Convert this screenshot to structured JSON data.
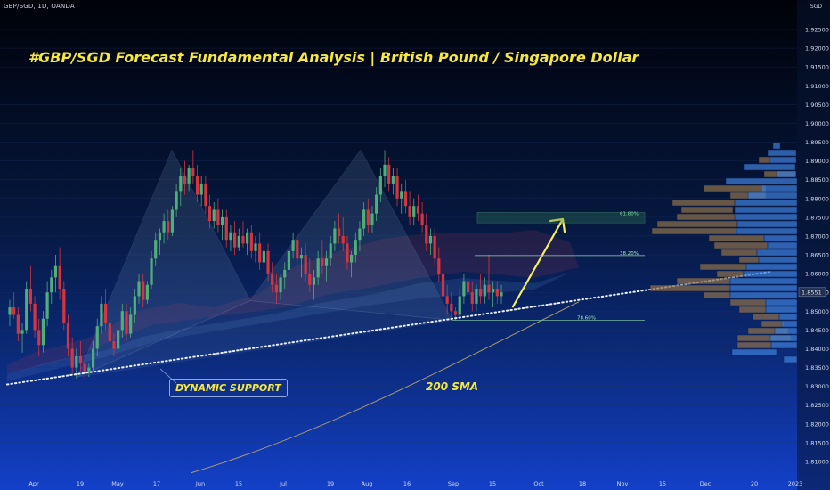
{
  "header": {
    "ticker": "GBP/SGD, 1D, OANDA",
    "title": "#GBP/SGD Forecast Fundamental Analysis | British Pound / Singapore Dollar",
    "currency": "SGD"
  },
  "labels": {
    "dynamic_support": "DYNAMIC SUPPORT",
    "sma": "200 SMA",
    "price_badge": "1.8551"
  },
  "chart_data": {
    "type": "candlestick",
    "x_ticks": [
      "Apr",
      "19",
      "May",
      "17",
      "Jun",
      "15",
      "Jul",
      "19",
      "Aug",
      "16",
      "Sep",
      "15",
      "Oct",
      "18",
      "Nov",
      "15",
      "Dec",
      "20",
      "2023"
    ],
    "y_ticks": [
      1.925,
      1.92,
      1.915,
      1.91,
      1.905,
      1.9,
      1.895,
      1.89,
      1.885,
      1.88,
      1.875,
      1.87,
      1.865,
      1.86,
      1.855,
      1.85,
      1.845,
      1.84,
      1.835,
      1.83,
      1.825,
      1.82,
      1.815,
      1.81
    ],
    "ylim": [
      1.806,
      1.931
    ],
    "fib_levels": [
      {
        "label": "61.80%",
        "value": 1.8753
      },
      {
        "label": "38.20%",
        "value": 1.8648
      },
      {
        "label": "78.60%",
        "value": 1.8476
      }
    ],
    "pattern_points": [
      {
        "x": "Apr 14",
        "y": 1.8325
      },
      {
        "x": "May 24",
        "y": 1.8929
      },
      {
        "x": "Jun 29",
        "y": 1.8528
      },
      {
        "x": "Aug 9",
        "y": 1.8929
      },
      {
        "x": "Sep 3",
        "y": 1.8476
      }
    ],
    "projection": {
      "from": {
        "x": "Sep 14",
        "y": 1.8512
      },
      "to": {
        "x": "Oct 4",
        "y": 1.8745
      }
    },
    "zones": [
      {
        "label": "61.80%",
        "low": 1.8735,
        "high": 1.8763
      }
    ],
    "support_line": {
      "from": {
        "x": "Mar 17",
        "y": 1.8305
      },
      "to": {
        "x": "2023",
        "y": 1.8605
      }
    },
    "sma_200": {
      "from": {
        "x": "May 22",
        "y": 1.807
      },
      "to": {
        "x": "Oct 17",
        "y": 1.8525
      }
    },
    "candles": [
      {
        "o": 1.849,
        "h": 1.853,
        "l": 1.846,
        "c": 1.851
      },
      {
        "o": 1.851,
        "h": 1.855,
        "l": 1.848,
        "c": 1.849
      },
      {
        "o": 1.849,
        "h": 1.851,
        "l": 1.842,
        "c": 1.844
      },
      {
        "o": 1.844,
        "h": 1.847,
        "l": 1.839,
        "c": 1.845
      },
      {
        "o": 1.845,
        "h": 1.858,
        "l": 1.844,
        "c": 1.856
      },
      {
        "o": 1.856,
        "h": 1.862,
        "l": 1.85,
        "c": 1.852
      },
      {
        "o": 1.852,
        "h": 1.854,
        "l": 1.843,
        "c": 1.845
      },
      {
        "o": 1.845,
        "h": 1.848,
        "l": 1.838,
        "c": 1.841
      },
      {
        "o": 1.841,
        "h": 1.85,
        "l": 1.839,
        "c": 1.848
      },
      {
        "o": 1.848,
        "h": 1.858,
        "l": 1.846,
        "c": 1.855
      },
      {
        "o": 1.855,
        "h": 1.861,
        "l": 1.852,
        "c": 1.859
      },
      {
        "o": 1.859,
        "h": 1.865,
        "l": 1.855,
        "c": 1.862
      },
      {
        "o": 1.862,
        "h": 1.867,
        "l": 1.853,
        "c": 1.856
      },
      {
        "o": 1.856,
        "h": 1.858,
        "l": 1.845,
        "c": 1.847
      },
      {
        "o": 1.847,
        "h": 1.849,
        "l": 1.838,
        "c": 1.84
      },
      {
        "o": 1.84,
        "h": 1.843,
        "l": 1.833,
        "c": 1.835
      },
      {
        "o": 1.835,
        "h": 1.84,
        "l": 1.832,
        "c": 1.838
      },
      {
        "o": 1.838,
        "h": 1.842,
        "l": 1.834,
        "c": 1.836
      },
      {
        "o": 1.836,
        "h": 1.839,
        "l": 1.832,
        "c": 1.834
      },
      {
        "o": 1.834,
        "h": 1.836,
        "l": 1.8325,
        "c": 1.835
      },
      {
        "o": 1.835,
        "h": 1.842,
        "l": 1.834,
        "c": 1.84
      },
      {
        "o": 1.84,
        "h": 1.848,
        "l": 1.838,
        "c": 1.846
      },
      {
        "o": 1.846,
        "h": 1.854,
        "l": 1.844,
        "c": 1.852
      },
      {
        "o": 1.852,
        "h": 1.856,
        "l": 1.845,
        "c": 1.847
      },
      {
        "o": 1.847,
        "h": 1.85,
        "l": 1.84,
        "c": 1.842
      },
      {
        "o": 1.842,
        "h": 1.844,
        "l": 1.838,
        "c": 1.84
      },
      {
        "o": 1.84,
        "h": 1.846,
        "l": 1.839,
        "c": 1.845
      },
      {
        "o": 1.845,
        "h": 1.852,
        "l": 1.843,
        "c": 1.85
      },
      {
        "o": 1.85,
        "h": 1.852,
        "l": 1.842,
        "c": 1.844
      },
      {
        "o": 1.844,
        "h": 1.851,
        "l": 1.843,
        "c": 1.849
      },
      {
        "o": 1.849,
        "h": 1.856,
        "l": 1.847,
        "c": 1.854
      },
      {
        "o": 1.854,
        "h": 1.86,
        "l": 1.852,
        "c": 1.858
      },
      {
        "o": 1.858,
        "h": 1.86,
        "l": 1.851,
        "c": 1.853
      },
      {
        "o": 1.853,
        "h": 1.858,
        "l": 1.852,
        "c": 1.857
      },
      {
        "o": 1.857,
        "h": 1.866,
        "l": 1.856,
        "c": 1.864
      },
      {
        "o": 1.864,
        "h": 1.871,
        "l": 1.862,
        "c": 1.869
      },
      {
        "o": 1.869,
        "h": 1.872,
        "l": 1.865,
        "c": 1.871
      },
      {
        "o": 1.871,
        "h": 1.876,
        "l": 1.868,
        "c": 1.874
      },
      {
        "o": 1.874,
        "h": 1.877,
        "l": 1.869,
        "c": 1.871
      },
      {
        "o": 1.871,
        "h": 1.878,
        "l": 1.87,
        "c": 1.877
      },
      {
        "o": 1.877,
        "h": 1.884,
        "l": 1.875,
        "c": 1.882
      },
      {
        "o": 1.882,
        "h": 1.888,
        "l": 1.878,
        "c": 1.886
      },
      {
        "o": 1.886,
        "h": 1.89,
        "l": 1.881,
        "c": 1.884
      },
      {
        "o": 1.884,
        "h": 1.889,
        "l": 1.882,
        "c": 1.888
      },
      {
        "o": 1.888,
        "h": 1.8929,
        "l": 1.884,
        "c": 1.886
      },
      {
        "o": 1.886,
        "h": 1.889,
        "l": 1.879,
        "c": 1.881
      },
      {
        "o": 1.881,
        "h": 1.886,
        "l": 1.878,
        "c": 1.884
      },
      {
        "o": 1.884,
        "h": 1.886,
        "l": 1.876,
        "c": 1.878
      },
      {
        "o": 1.878,
        "h": 1.881,
        "l": 1.872,
        "c": 1.874
      },
      {
        "o": 1.874,
        "h": 1.879,
        "l": 1.872,
        "c": 1.877
      },
      {
        "o": 1.877,
        "h": 1.88,
        "l": 1.871,
        "c": 1.873
      },
      {
        "o": 1.873,
        "h": 1.877,
        "l": 1.869,
        "c": 1.875
      },
      {
        "o": 1.875,
        "h": 1.877,
        "l": 1.867,
        "c": 1.869
      },
      {
        "o": 1.869,
        "h": 1.873,
        "l": 1.866,
        "c": 1.871
      },
      {
        "o": 1.871,
        "h": 1.874,
        "l": 1.865,
        "c": 1.867
      },
      {
        "o": 1.867,
        "h": 1.872,
        "l": 1.866,
        "c": 1.87
      },
      {
        "o": 1.87,
        "h": 1.874,
        "l": 1.867,
        "c": 1.868
      },
      {
        "o": 1.868,
        "h": 1.872,
        "l": 1.865,
        "c": 1.871
      },
      {
        "o": 1.871,
        "h": 1.873,
        "l": 1.864,
        "c": 1.866
      },
      {
        "o": 1.866,
        "h": 1.87,
        "l": 1.863,
        "c": 1.868
      },
      {
        "o": 1.868,
        "h": 1.871,
        "l": 1.861,
        "c": 1.863
      },
      {
        "o": 1.863,
        "h": 1.868,
        "l": 1.861,
        "c": 1.866
      },
      {
        "o": 1.866,
        "h": 1.868,
        "l": 1.858,
        "c": 1.86
      },
      {
        "o": 1.86,
        "h": 1.863,
        "l": 1.855,
        "c": 1.857
      },
      {
        "o": 1.857,
        "h": 1.86,
        "l": 1.852,
        "c": 1.855
      },
      {
        "o": 1.855,
        "h": 1.86,
        "l": 1.853,
        "c": 1.859
      },
      {
        "o": 1.859,
        "h": 1.863,
        "l": 1.856,
        "c": 1.861
      },
      {
        "o": 1.861,
        "h": 1.868,
        "l": 1.86,
        "c": 1.866
      },
      {
        "o": 1.866,
        "h": 1.871,
        "l": 1.864,
        "c": 1.869
      },
      {
        "o": 1.869,
        "h": 1.87,
        "l": 1.862,
        "c": 1.864
      },
      {
        "o": 1.864,
        "h": 1.867,
        "l": 1.859,
        "c": 1.865
      },
      {
        "o": 1.865,
        "h": 1.868,
        "l": 1.858,
        "c": 1.86
      },
      {
        "o": 1.86,
        "h": 1.864,
        "l": 1.855,
        "c": 1.857
      },
      {
        "o": 1.857,
        "h": 1.861,
        "l": 1.853,
        "c": 1.859
      },
      {
        "o": 1.859,
        "h": 1.866,
        "l": 1.857,
        "c": 1.864
      },
      {
        "o": 1.864,
        "h": 1.869,
        "l": 1.86,
        "c": 1.862
      },
      {
        "o": 1.862,
        "h": 1.866,
        "l": 1.858,
        "c": 1.864
      },
      {
        "o": 1.864,
        "h": 1.87,
        "l": 1.862,
        "c": 1.868
      },
      {
        "o": 1.868,
        "h": 1.874,
        "l": 1.866,
        "c": 1.872
      },
      {
        "o": 1.872,
        "h": 1.876,
        "l": 1.868,
        "c": 1.87
      },
      {
        "o": 1.87,
        "h": 1.875,
        "l": 1.866,
        "c": 1.868
      },
      {
        "o": 1.868,
        "h": 1.87,
        "l": 1.861,
        "c": 1.863
      },
      {
        "o": 1.863,
        "h": 1.866,
        "l": 1.859,
        "c": 1.865
      },
      {
        "o": 1.865,
        "h": 1.871,
        "l": 1.863,
        "c": 1.869
      },
      {
        "o": 1.869,
        "h": 1.874,
        "l": 1.866,
        "c": 1.872
      },
      {
        "o": 1.872,
        "h": 1.879,
        "l": 1.87,
        "c": 1.877
      },
      {
        "o": 1.877,
        "h": 1.88,
        "l": 1.871,
        "c": 1.873
      },
      {
        "o": 1.873,
        "h": 1.878,
        "l": 1.871,
        "c": 1.876
      },
      {
        "o": 1.876,
        "h": 1.883,
        "l": 1.874,
        "c": 1.881
      },
      {
        "o": 1.881,
        "h": 1.888,
        "l": 1.879,
        "c": 1.886
      },
      {
        "o": 1.886,
        "h": 1.8929,
        "l": 1.883,
        "c": 1.889
      },
      {
        "o": 1.889,
        "h": 1.891,
        "l": 1.882,
        "c": 1.884
      },
      {
        "o": 1.884,
        "h": 1.888,
        "l": 1.881,
        "c": 1.886
      },
      {
        "o": 1.886,
        "h": 1.888,
        "l": 1.878,
        "c": 1.88
      },
      {
        "o": 1.88,
        "h": 1.884,
        "l": 1.876,
        "c": 1.882
      },
      {
        "o": 1.882,
        "h": 1.885,
        "l": 1.876,
        "c": 1.878
      },
      {
        "o": 1.878,
        "h": 1.882,
        "l": 1.873,
        "c": 1.875
      },
      {
        "o": 1.875,
        "h": 1.88,
        "l": 1.873,
        "c": 1.878
      },
      {
        "o": 1.878,
        "h": 1.881,
        "l": 1.874,
        "c": 1.876
      },
      {
        "o": 1.876,
        "h": 1.879,
        "l": 1.871,
        "c": 1.873
      },
      {
        "o": 1.873,
        "h": 1.876,
        "l": 1.866,
        "c": 1.868
      },
      {
        "o": 1.868,
        "h": 1.872,
        "l": 1.865,
        "c": 1.87
      },
      {
        "o": 1.87,
        "h": 1.872,
        "l": 1.862,
        "c": 1.864
      },
      {
        "o": 1.864,
        "h": 1.867,
        "l": 1.858,
        "c": 1.86
      },
      {
        "o": 1.86,
        "h": 1.862,
        "l": 1.852,
        "c": 1.854
      },
      {
        "o": 1.854,
        "h": 1.857,
        "l": 1.849,
        "c": 1.852
      },
      {
        "o": 1.852,
        "h": 1.855,
        "l": 1.848,
        "c": 1.85
      },
      {
        "o": 1.85,
        "h": 1.851,
        "l": 1.8476,
        "c": 1.849
      },
      {
        "o": 1.849,
        "h": 1.856,
        "l": 1.848,
        "c": 1.854
      },
      {
        "o": 1.854,
        "h": 1.86,
        "l": 1.852,
        "c": 1.858
      },
      {
        "o": 1.858,
        "h": 1.862,
        "l": 1.853,
        "c": 1.855
      },
      {
        "o": 1.855,
        "h": 1.858,
        "l": 1.85,
        "c": 1.852
      },
      {
        "o": 1.852,
        "h": 1.857,
        "l": 1.85,
        "c": 1.856
      },
      {
        "o": 1.856,
        "h": 1.86,
        "l": 1.852,
        "c": 1.854
      },
      {
        "o": 1.854,
        "h": 1.859,
        "l": 1.852,
        "c": 1.857
      },
      {
        "o": 1.857,
        "h": 1.865,
        "l": 1.853,
        "c": 1.855
      },
      {
        "o": 1.855,
        "h": 1.858,
        "l": 1.851,
        "c": 1.856
      },
      {
        "o": 1.856,
        "h": 1.858,
        "l": 1.852,
        "c": 1.854
      },
      {
        "o": 1.854,
        "h": 1.857,
        "l": 1.852,
        "c": 1.855
      }
    ]
  }
}
